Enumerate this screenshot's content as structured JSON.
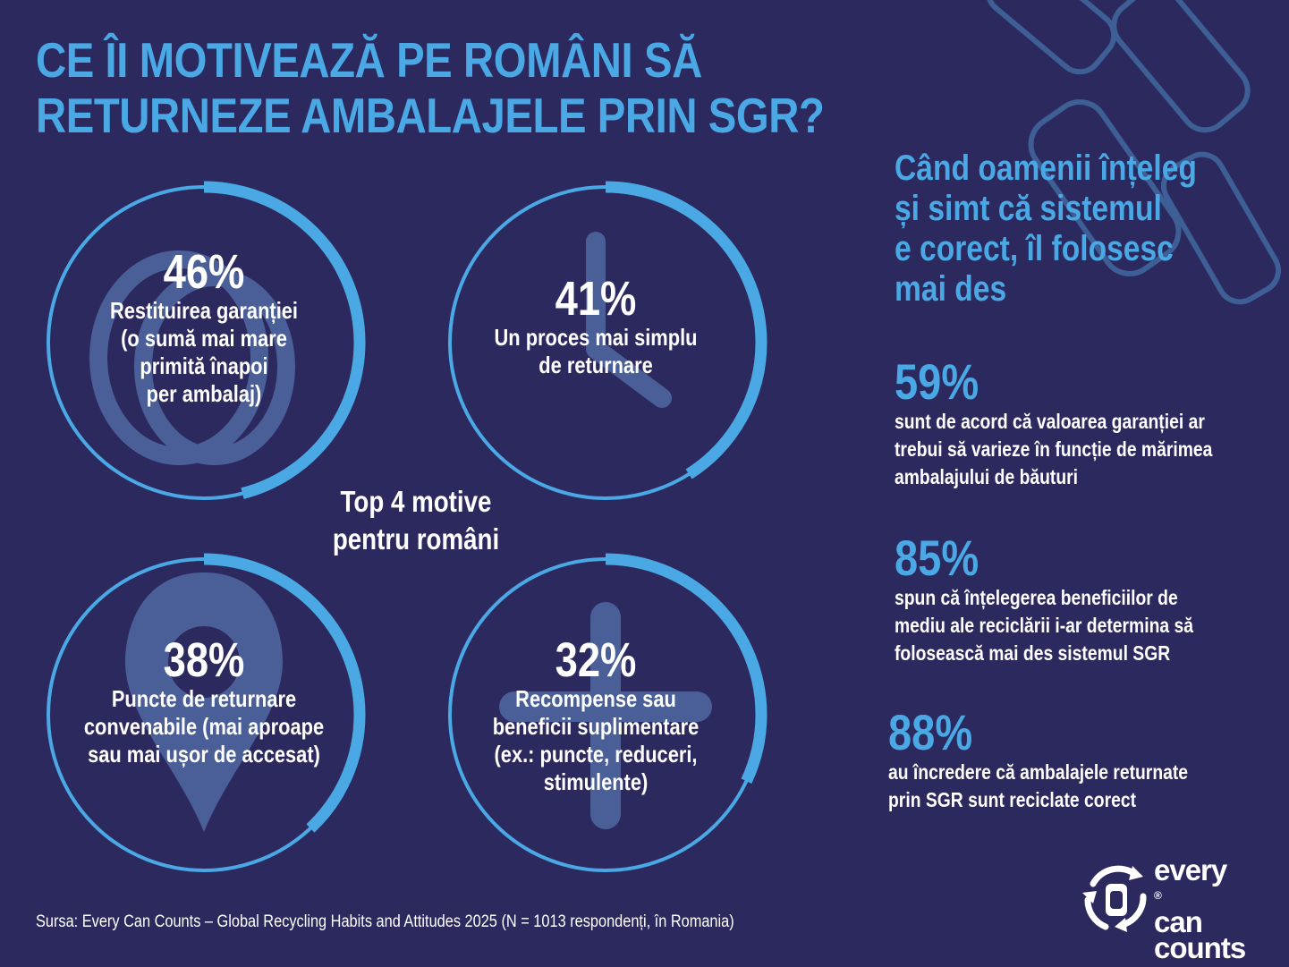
{
  "title": {
    "line1": "CE ÎI MOTIVEAZĂ PE ROMÂNI SĂ",
    "line2": "RETURNEZE AMBALAJELE PRIN SGR?"
  },
  "colors": {
    "background": "#2c295f",
    "accent": "#4aa8e5",
    "track": "#3e5e96",
    "icon": "#4a5f98"
  },
  "chart_data": {
    "type": "donut",
    "title": "Top 4 motive pentru români",
    "unit": "%",
    "categories": [
      "Restituirea garanției (o sumă mai mare primită înapoi per ambalaj)",
      "Un proces mai simplu de returnare",
      "Puncte de returnare convenabile (mai aproape sau mai ușor de accesat)",
      "Recompense sau beneficii suplimentare (ex.: puncte, reduceri, stimulente)"
    ],
    "values": [
      46,
      41,
      38,
      32
    ],
    "ylim": [
      0,
      100
    ],
    "items": [
      {
        "pct_label": "46%",
        "label_lines": [
          "Restituirea garanției",
          "(o sumă mai mare",
          "primită înapoi",
          "per ambalaj)"
        ],
        "icon": "coin-icon"
      },
      {
        "pct_label": "41%",
        "label_lines": [
          "Un proces mai simplu",
          "de returnare"
        ],
        "icon": "clock-icon"
      },
      {
        "pct_label": "38%",
        "label_lines": [
          "Puncte de returnare",
          "convenabile (mai aproape",
          "sau mai ușor de accesat)"
        ],
        "icon": "location-pin-icon"
      },
      {
        "pct_label": "32%",
        "label_lines": [
          "Recompense sau",
          "beneficii suplimentare",
          "(ex.: puncte, reduceri,",
          "stimulente)"
        ],
        "icon": "plus-icon"
      }
    ]
  },
  "center_label": {
    "line1": "Top 4 motive",
    "line2": "pentru români"
  },
  "side": {
    "heading_lines": [
      "Când oamenii înțeleg",
      "și simt că sistemul",
      "e corect, îl folosesc",
      "mai des"
    ],
    "stats": [
      {
        "value": "59%",
        "lines": [
          "sunt de acord că valoarea garanției ar",
          "trebui să varieze în funcție de mărimea",
          "ambalajului de băuturi"
        ]
      },
      {
        "value": "85%",
        "lines": [
          "spun că înțelegerea beneficiilor de",
          "mediu ale reciclării i-ar determina să",
          "folosească mai des sistemul SGR"
        ]
      },
      {
        "value": "88%",
        "lines": [
          "au încredere că ambalajele returnate",
          "prin SGR sunt reciclate corect"
        ]
      }
    ]
  },
  "source": "Sursa: Every Can Counts – Global Recycling Habits and Attitudes 2025 (N = 1013 respondenți, în Romania)",
  "logo": {
    "line1": "every",
    "line2": "can",
    "line3": "counts",
    "reg": "®"
  }
}
